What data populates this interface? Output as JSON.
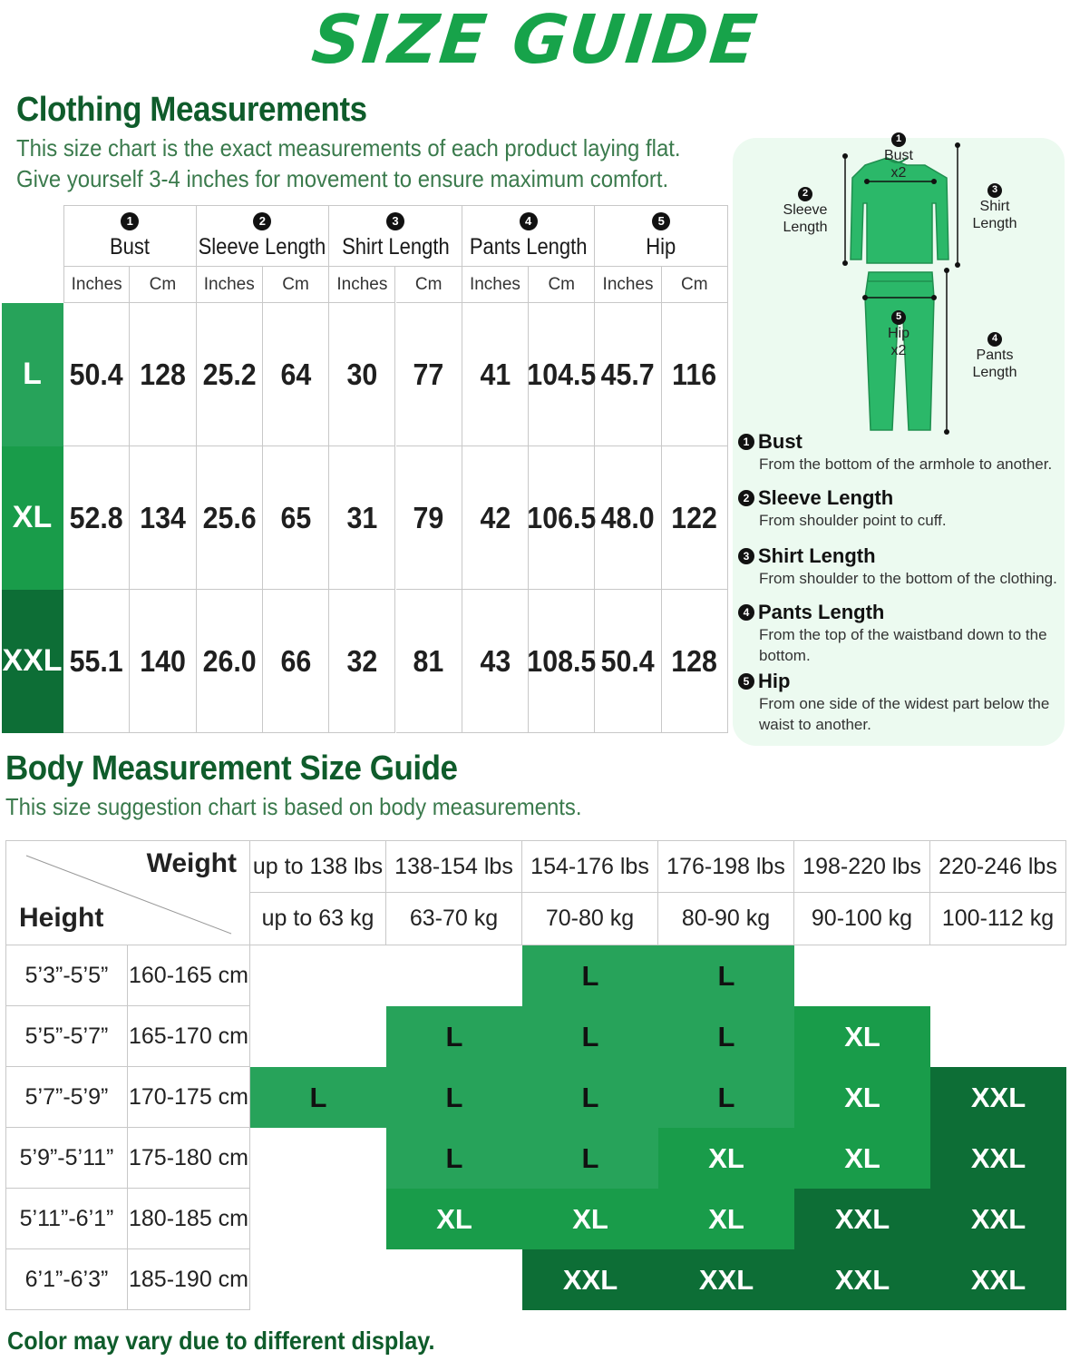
{
  "title": "SIZE GUIDE",
  "clothing": {
    "heading": "Clothing Measurements",
    "note_line1": "This size chart is the exact measurements of each product laying flat.",
    "note_line2": "Give yourself 3-4 inches for movement to ensure maximum comfort.",
    "columns": [
      {
        "num": "1",
        "label": "Bust"
      },
      {
        "num": "2",
        "label": "Sleeve Length"
      },
      {
        "num": "3",
        "label": "Shirt Length"
      },
      {
        "num": "4",
        "label": "Pants Length"
      },
      {
        "num": "5",
        "label": "Hip"
      }
    ],
    "unit_inches": "Inches",
    "unit_cm": "Cm",
    "rows": [
      {
        "size": "L",
        "values": [
          "50.4",
          "128",
          "25.2",
          "64",
          "30",
          "77",
          "41",
          "104.5",
          "45.7",
          "116"
        ]
      },
      {
        "size": "XL",
        "values": [
          "52.8",
          "134",
          "25.6",
          "65",
          "31",
          "79",
          "42",
          "106.5",
          "48.0",
          "122"
        ]
      },
      {
        "size": "XXL",
        "values": [
          "55.1",
          "140",
          "26.0",
          "66",
          "32",
          "81",
          "43",
          "108.5",
          "50.4",
          "128"
        ]
      }
    ]
  },
  "diagram": {
    "bust_label": "Bust",
    "bust_mult": "x2",
    "sleeve_label1": "Sleeve",
    "sleeve_label2": "Length",
    "shirt_label1": "Shirt",
    "shirt_label2": "Length",
    "hip_label": "Hip",
    "hip_mult": "x2",
    "pants_label1": "Pants",
    "pants_label2": "Length",
    "legend": [
      {
        "num": "1",
        "title": "Bust",
        "desc": "From the bottom of the armhole to another."
      },
      {
        "num": "2",
        "title": "Sleeve Length",
        "desc": "From shoulder point to cuff."
      },
      {
        "num": "3",
        "title": "Shirt Length",
        "desc": "From shoulder to the bottom of the clothing."
      },
      {
        "num": "4",
        "title": "Pants Length",
        "desc": "From the top of the waistband down to the bottom."
      },
      {
        "num": "5",
        "title": "Hip",
        "desc": "From one side of the widest part below the waist to another."
      }
    ]
  },
  "body": {
    "heading": "Body Measurement Size Guide",
    "note": "This size suggestion chart is based on body measurements.",
    "weight_label": "Weight",
    "height_label": "Height",
    "weights_lbs": [
      "up to 138 lbs",
      "138-154 lbs",
      "154-176 lbs",
      "176-198 lbs",
      "198-220 lbs",
      "220-246 lbs"
    ],
    "weights_kg": [
      "up to 63 kg",
      "63-70 kg",
      "70-80 kg",
      "80-90 kg",
      "90-100 kg",
      "100-112 kg"
    ],
    "rows": [
      {
        "ft": "5’3”-5’5”",
        "cm": "160-165 cm",
        "sizes": [
          "",
          "",
          "L",
          "L",
          "",
          ""
        ]
      },
      {
        "ft": "5’5”-5’7”",
        "cm": "165-170 cm",
        "sizes": [
          "",
          "L",
          "L",
          "L",
          "XL",
          ""
        ]
      },
      {
        "ft": "5’7”-5’9”",
        "cm": "170-175 cm",
        "sizes": [
          "L",
          "L",
          "L",
          "L",
          "XL",
          "XXL"
        ]
      },
      {
        "ft": "5’9”-5’11”",
        "cm": "175-180 cm",
        "sizes": [
          "",
          "L",
          "L",
          "XL",
          "XL",
          "XXL"
        ]
      },
      {
        "ft": "5’11”-6’1”",
        "cm": "180-185 cm",
        "sizes": [
          "",
          "XL",
          "XL",
          "XL",
          "XXL",
          "XXL"
        ]
      },
      {
        "ft": "6’1”-6’3”",
        "cm": "185-190 cm",
        "sizes": [
          "",
          "",
          "XXL",
          "XXL",
          "XXL",
          "XXL"
        ]
      }
    ]
  },
  "footer": "Color may vary due to different display.",
  "colors": {
    "L": "#27a35a",
    "XL": "#199c4a",
    "XXL": "#0d6e36",
    "title": "#17a34a",
    "heading": "#0f5c2b",
    "garment": "#2bb869"
  }
}
